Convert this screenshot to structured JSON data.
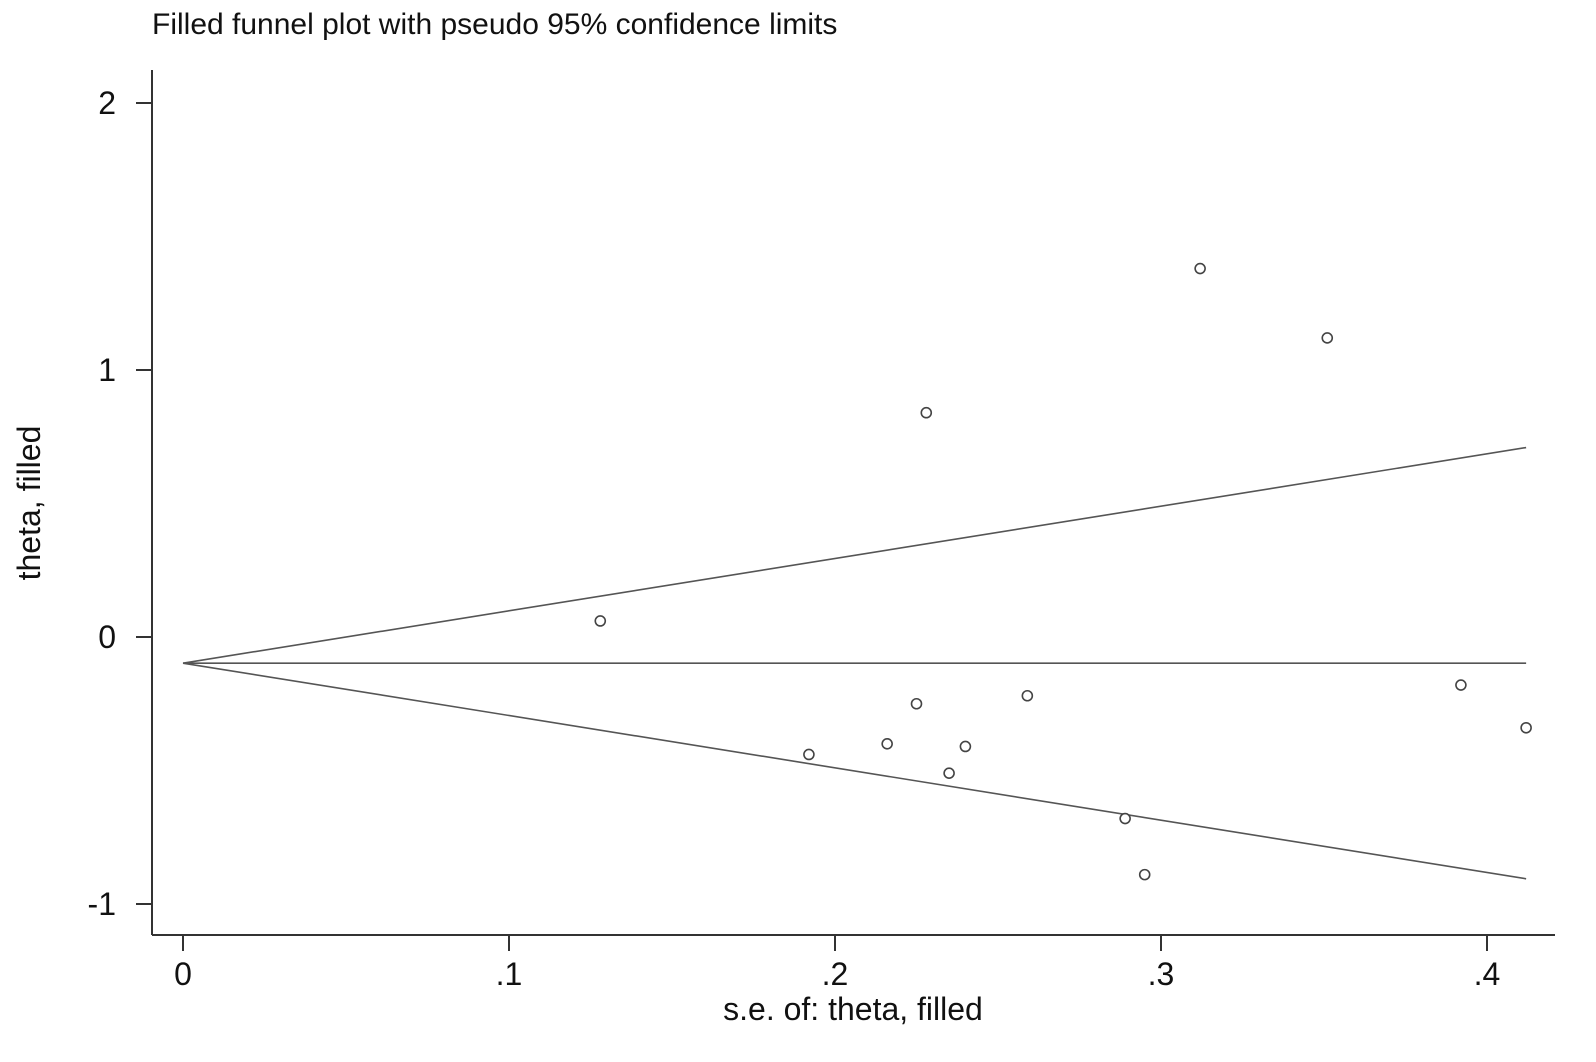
{
  "chart_data": {
    "type": "scatter",
    "title": "Filled funnel plot with pseudo 95% confidence limits",
    "xlabel": "s.e. of: theta, filled",
    "ylabel": "theta, filled",
    "xlim": [
      -0.01,
      0.42
    ],
    "ylim": [
      -1.11,
      2.0
    ],
    "xticks": [
      {
        "value": 0,
        "label": "0"
      },
      {
        "value": 0.1,
        "label": ".1"
      },
      {
        "value": 0.2,
        "label": ".2"
      },
      {
        "value": 0.3,
        "label": ".3"
      },
      {
        "value": 0.4,
        "label": ".4"
      }
    ],
    "yticks": [
      {
        "value": -1,
        "label": "-1"
      },
      {
        "value": 0,
        "label": "0"
      },
      {
        "value": 1,
        "label": "1"
      },
      {
        "value": 2,
        "label": "2"
      }
    ],
    "pooled_estimate": -0.098,
    "funnel_se_max": 0.412,
    "confidence_multiplier": 1.96,
    "points": [
      {
        "se": 0.128,
        "theta": 0.06
      },
      {
        "se": 0.192,
        "theta": -0.44
      },
      {
        "se": 0.216,
        "theta": -0.4
      },
      {
        "se": 0.225,
        "theta": -0.25
      },
      {
        "se": 0.228,
        "theta": 0.84
      },
      {
        "se": 0.235,
        "theta": -0.51
      },
      {
        "se": 0.24,
        "theta": -0.41
      },
      {
        "se": 0.259,
        "theta": -0.22
      },
      {
        "se": 0.289,
        "theta": -0.68
      },
      {
        "se": 0.295,
        "theta": -0.89
      },
      {
        "se": 0.312,
        "theta": 1.38
      },
      {
        "se": 0.351,
        "theta": 1.12
      },
      {
        "se": 0.392,
        "theta": -0.18
      },
      {
        "se": 0.412,
        "theta": -0.34
      }
    ]
  }
}
